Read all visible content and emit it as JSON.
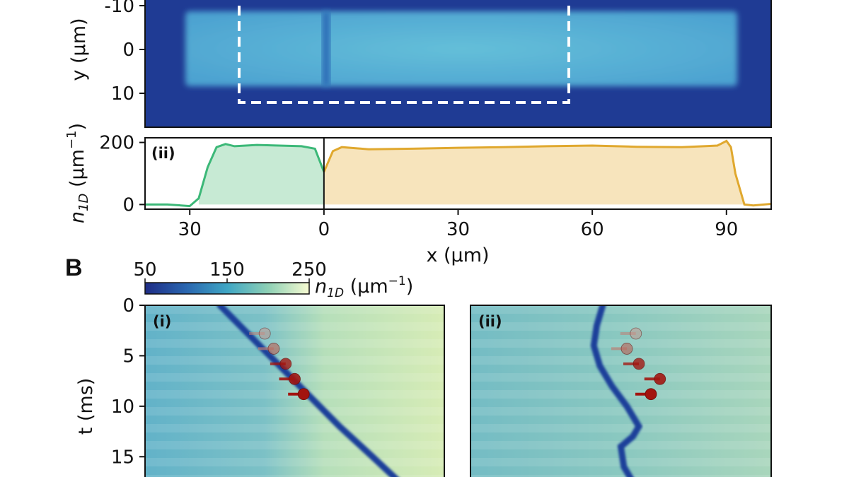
{
  "figure": {
    "section_label": "B",
    "colors": {
      "background": "#ffffff",
      "image_dark": "#1f3a93",
      "image_bright": "#5cb3d4",
      "waterfall_base": "#6fb8c9",
      "waterfall_bright": "#d6ecb8",
      "soliton": "#1a3f9a",
      "left_profile": "#3cb878",
      "left_fill": "#bde6cd",
      "right_profile": "#e0a82e",
      "right_fill": "#f6dfb0",
      "marker_dark": "#a3140f",
      "marker_light": "#bf7f74"
    }
  },
  "chart_data": [
    {
      "id": "A-i",
      "type": "heatmap",
      "title": "",
      "ylabel": "y (μm)",
      "yticks": [
        "-10",
        "0",
        "10"
      ],
      "ylim": [
        -14,
        18
      ],
      "annotation": "dashed rectangle marking the region of interest"
    },
    {
      "id": "A-ii",
      "type": "line",
      "panel_label": "(ii)",
      "xlabel": "x (μm)",
      "ylabel_main": "n",
      "ylabel_sub": "1D",
      "ylabel_unit": " (μm",
      "ylabel_exp": "−1",
      "ylabel_close": ")",
      "xticks": [
        "30",
        "0",
        "30",
        "60",
        "90"
      ],
      "yticks": [
        "0",
        "200"
      ],
      "xlim": [
        -40,
        100
      ],
      "ylim": [
        -15,
        215
      ],
      "series": [
        {
          "x": [
            -40,
            -35,
            -30,
            -28,
            -26,
            -24,
            -22,
            -20,
            -15,
            -10,
            -5,
            -2,
            0
          ],
          "values": [
            0,
            0,
            -5,
            20,
            120,
            185,
            195,
            188,
            192,
            190,
            188,
            180,
            105
          ]
        },
        {
          "x": [
            0,
            2,
            4,
            10,
            20,
            30,
            40,
            50,
            60,
            70,
            80,
            85,
            88,
            90,
            91,
            92,
            94,
            96,
            100
          ],
          "values": [
            105,
            172,
            185,
            178,
            180,
            183,
            185,
            188,
            190,
            186,
            185,
            188,
            190,
            205,
            185,
            100,
            0,
            -3,
            2
          ]
        }
      ]
    },
    {
      "id": "B-colorbar",
      "type": "heatmap",
      "label_main": "n",
      "label_sub": "1D",
      "label_unit": " (μm",
      "label_exp": "−1",
      "label_close": ")",
      "ticks": [
        "50",
        "150",
        "250"
      ],
      "range": [
        50,
        250
      ]
    },
    {
      "id": "B-i",
      "type": "heatmap",
      "panel_label": "(i)",
      "ylabel": "t (ms)",
      "yticks": [
        "0",
        "5",
        "10",
        "15"
      ],
      "ylim": [
        0,
        17.5
      ],
      "soliton_path": {
        "t": [
          0,
          3,
          6,
          9,
          12,
          15,
          17.5
        ],
        "pos": [
          0.25,
          0.35,
          0.45,
          0.55,
          0.65,
          0.76,
          0.85
        ]
      },
      "markers": {
        "t": [
          2.8,
          4.3,
          5.8,
          7.3,
          8.8
        ],
        "pos": [
          0.4,
          0.43,
          0.47,
          0.5,
          0.53
        ]
      }
    },
    {
      "id": "B-ii",
      "type": "heatmap",
      "panel_label": "(ii)",
      "soliton_path": {
        "t": [
          0,
          2,
          4,
          6,
          8,
          10,
          12,
          13,
          14,
          16,
          17.5
        ],
        "pos": [
          0.44,
          0.42,
          0.41,
          0.43,
          0.47,
          0.52,
          0.56,
          0.54,
          0.5,
          0.51,
          0.54
        ]
      },
      "markers": {
        "t": [
          2.8,
          4.3,
          5.8,
          7.3,
          8.8
        ],
        "pos": [
          0.55,
          0.52,
          0.56,
          0.63,
          0.6
        ]
      }
    }
  ]
}
